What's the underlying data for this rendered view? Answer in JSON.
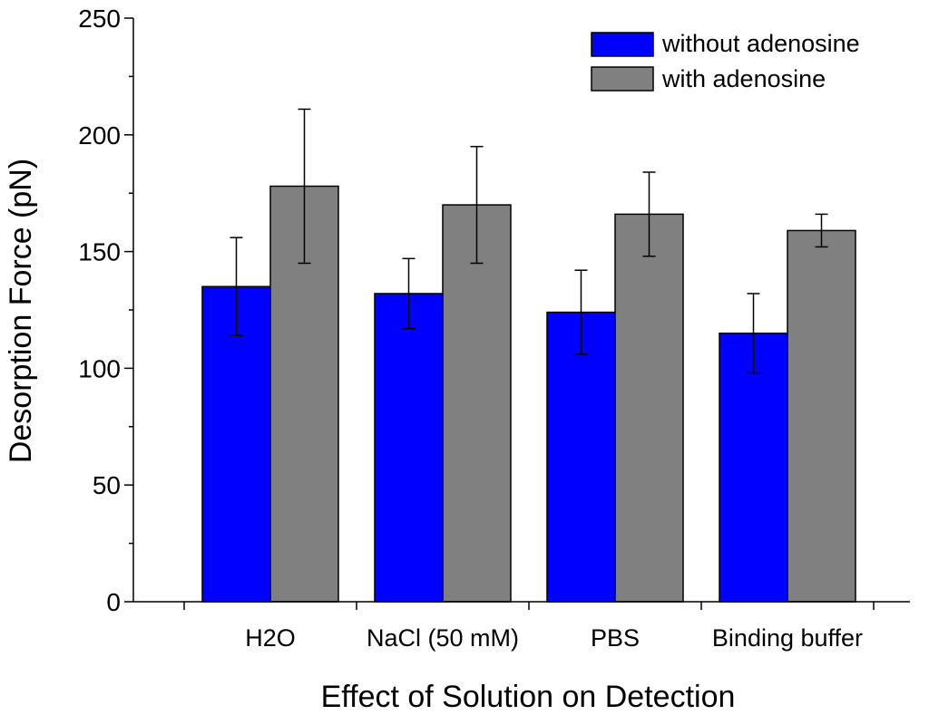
{
  "chart_data": {
    "type": "bar",
    "title": "",
    "xlabel": "Effect of Solution on Detection",
    "ylabel": "Desorption Force (pN)",
    "ylim": [
      0,
      250
    ],
    "yticks": [
      0,
      50,
      100,
      150,
      200,
      250
    ],
    "grid": false,
    "legend_position": "top-right",
    "categories": [
      "H2O",
      "NaCl (50 mM)",
      "PBS",
      "Binding buffer"
    ],
    "series": [
      {
        "name": "without adenosine",
        "color": "#0000ff",
        "values": [
          135,
          132,
          124,
          115
        ],
        "errors": [
          21,
          15,
          18,
          17
        ]
      },
      {
        "name": "with adenosine",
        "color": "#808080",
        "values": [
          178,
          170,
          166,
          159
        ],
        "errors": [
          33,
          25,
          18,
          7
        ]
      }
    ]
  }
}
